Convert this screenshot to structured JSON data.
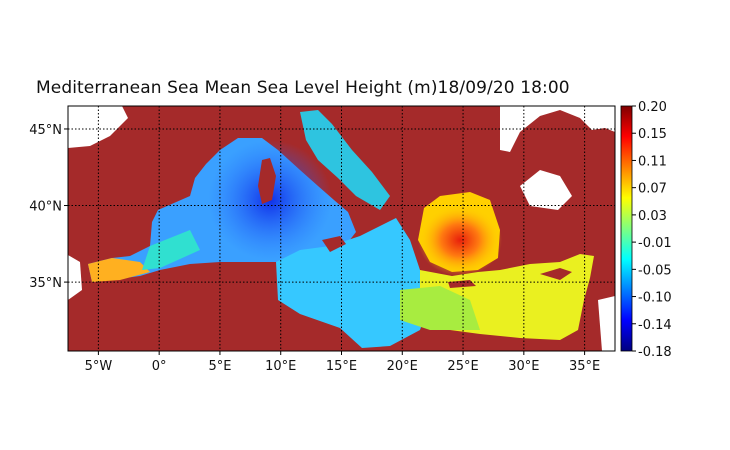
{
  "title": "Mediterranean Sea Mean Sea Level Height (m)18/09/20 18:00",
  "map": {
    "lon_range": [
      -7.5,
      37.5
    ],
    "lat_range": [
      30.5,
      46.5
    ],
    "lon_ticks": [
      {
        "value": -5,
        "label": "5°W"
      },
      {
        "value": 0,
        "label": "0°"
      },
      {
        "value": 5,
        "label": "5°E"
      },
      {
        "value": 10,
        "label": "10°E"
      },
      {
        "value": 15,
        "label": "15°E"
      },
      {
        "value": 20,
        "label": "20°E"
      },
      {
        "value": 25,
        "label": "25°E"
      },
      {
        "value": 30,
        "label": "30°E"
      },
      {
        "value": 35,
        "label": "35°E"
      }
    ],
    "lat_ticks": [
      {
        "value": 35,
        "label": "35°N"
      },
      {
        "value": 40,
        "label": "40°N"
      },
      {
        "value": 45,
        "label": "45°N"
      }
    ],
    "land_color": "#a52a2a",
    "gridlines": "dotted"
  },
  "colorbar": {
    "min": -0.18,
    "max": 0.2,
    "labels": [
      "0.20",
      "0.15",
      "0.11",
      "0.07",
      "0.03",
      "-0.01",
      "-0.05",
      "-0.10",
      "-0.14",
      "-0.18"
    ],
    "colormap": "jet"
  }
}
